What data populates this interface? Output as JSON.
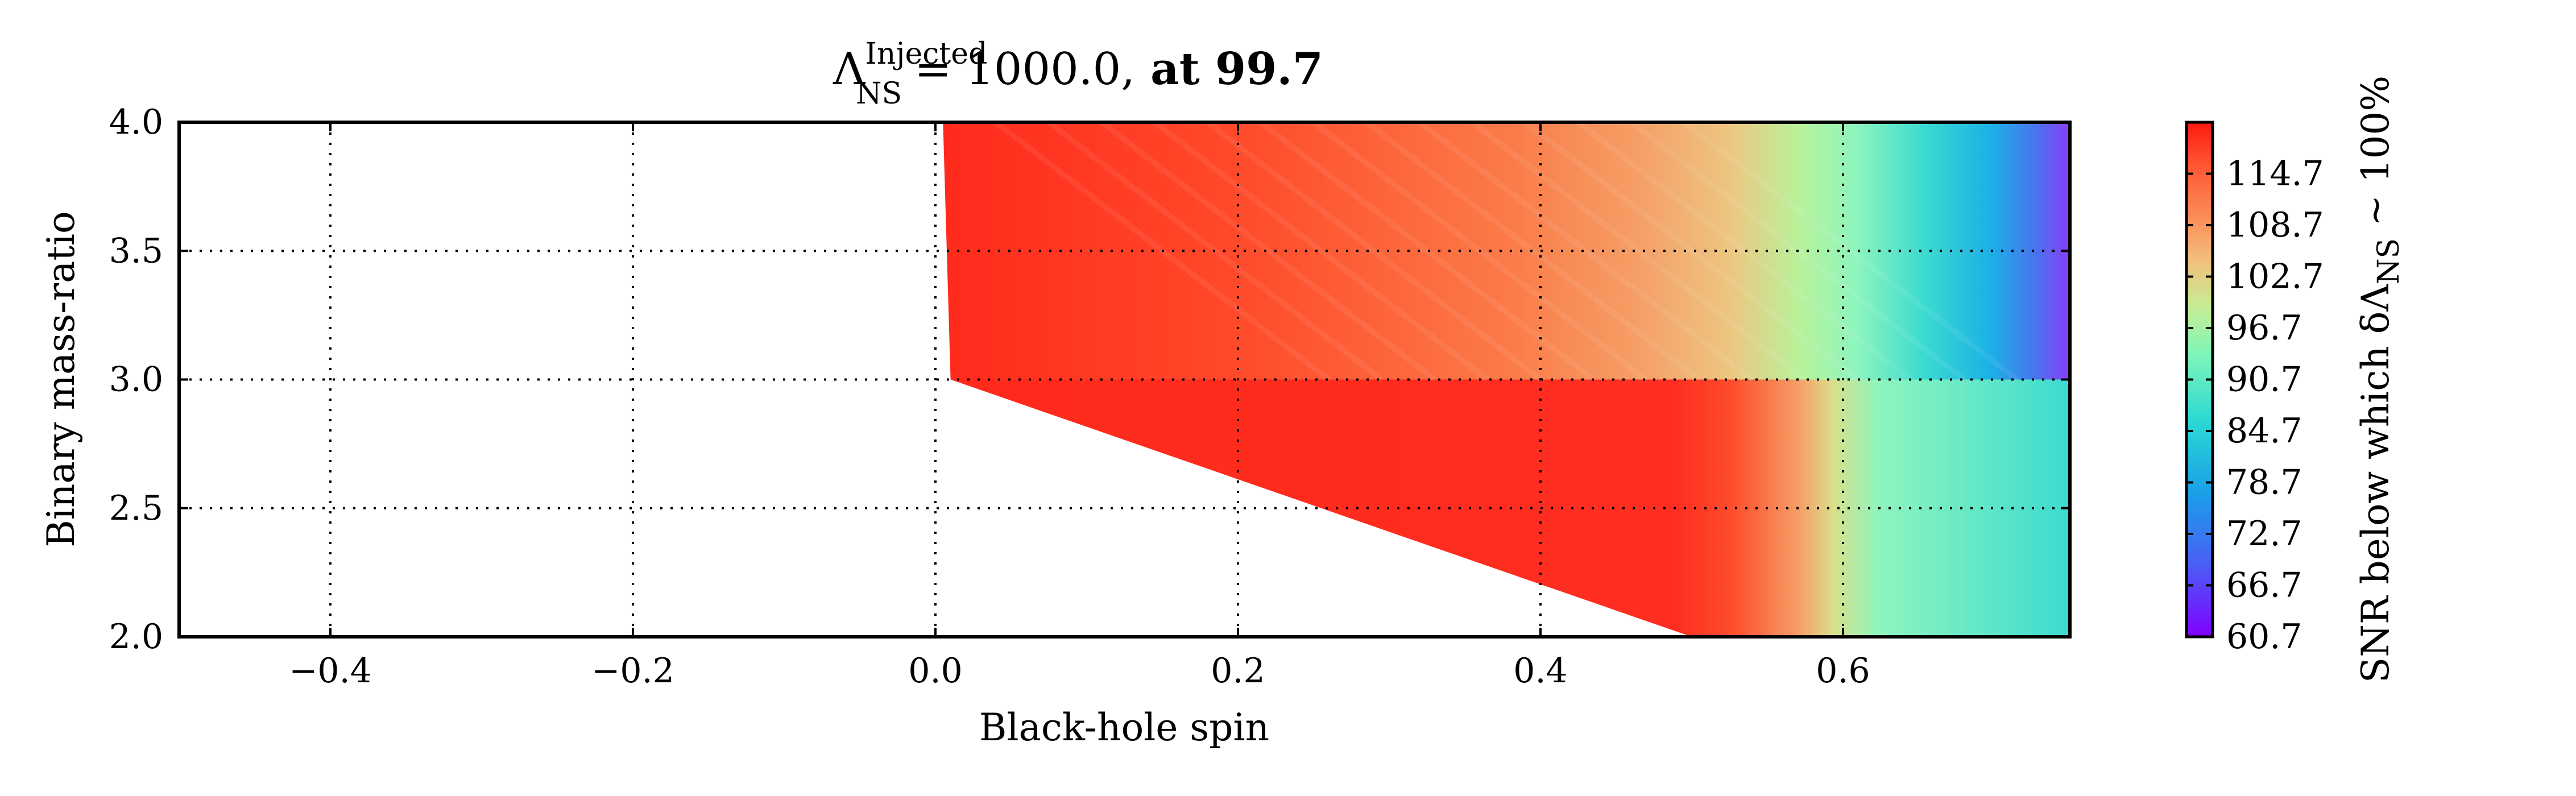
{
  "chart_data": {
    "type": "heatmap",
    "title": {
      "symbol": "Λ",
      "superscript": "Injected",
      "subscript": "NS",
      "equals": "= 1000.0,",
      "suffix": " at 99.7"
    },
    "xlabel": "Black-hole spin",
    "ylabel": "Binary mass-ratio",
    "xlim": [
      -0.5,
      0.75
    ],
    "ylim": [
      2.0,
      4.0
    ],
    "xticks": [
      -0.4,
      -0.2,
      0.0,
      0.2,
      0.4,
      0.6
    ],
    "xtick_labels": [
      "−0.4",
      "−0.2",
      "0.0",
      "0.2",
      "0.4",
      "0.6"
    ],
    "yticks": [
      2.0,
      2.5,
      3.0,
      3.5,
      4.0
    ],
    "ytick_labels": [
      "2.0",
      "2.5",
      "3.0",
      "3.5",
      "4.0"
    ],
    "grid": true,
    "colorbar": {
      "label": "SNR below which δΛ",
      "label_subscript": "NS",
      "label_suffix": " ~ 100%",
      "range": [
        60.7,
        120.7
      ],
      "ticks": [
        60.7,
        66.7,
        72.7,
        78.7,
        84.7,
        90.7,
        96.7,
        102.7,
        108.7,
        114.7
      ],
      "tick_labels": [
        "60.7",
        "66.7",
        "72.7",
        "78.7",
        "84.7",
        "90.7",
        "96.7",
        "102.7",
        "108.7",
        "114.7"
      ],
      "colormap": "rainbow"
    },
    "filled_region_boundary": [
      {
        "spin": 0.005,
        "q": 4.0
      },
      {
        "spin": 0.75,
        "q": 4.0
      },
      {
        "spin": 0.75,
        "q": 2.0
      },
      {
        "spin": 0.5,
        "q": 2.0
      },
      {
        "spin": 0.01,
        "q": 3.0
      }
    ],
    "snr_vs_spin_at_q4": [
      {
        "spin": 0.0,
        "snr": 120.7
      },
      {
        "spin": 0.2,
        "snr": 112.0
      },
      {
        "spin": 0.4,
        "snr": 103.0
      },
      {
        "spin": 0.5,
        "snr": 96.0
      },
      {
        "spin": 0.6,
        "snr": 86.0
      },
      {
        "spin": 0.75,
        "snr": 62.0
      }
    ],
    "snr_vs_spin_at_q2": [
      {
        "spin": 0.5,
        "snr": 118.0
      },
      {
        "spin": 0.55,
        "snr": 108.0
      },
      {
        "spin": 0.6,
        "snr": 90.0
      },
      {
        "spin": 0.75,
        "snr": 82.0
      }
    ]
  }
}
